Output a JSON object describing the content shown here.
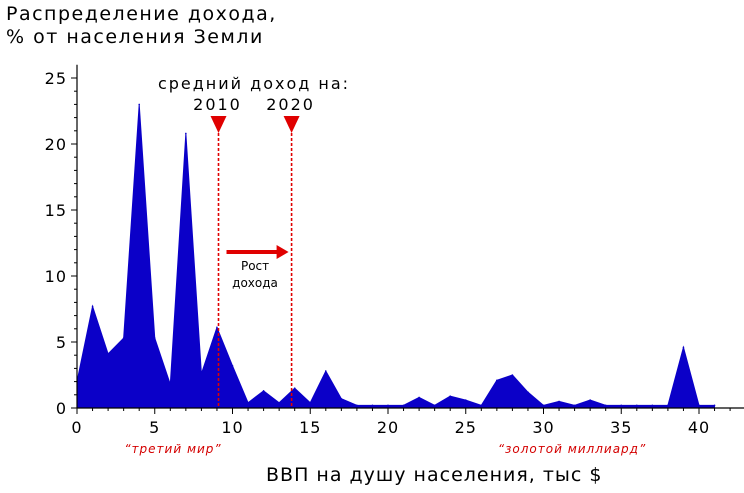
{
  "chart_data": {
    "type": "area",
    "title_lines": [
      "Распределение дохода,",
      "% от населения Земли"
    ],
    "xlabel": "ВВП на душу населения, тыс $",
    "xlim": [
      0,
      43
    ],
    "ylim": [
      0,
      26
    ],
    "xticks": [
      0,
      5,
      10,
      15,
      20,
      25,
      30,
      35,
      40
    ],
    "yticks": [
      0,
      5,
      10,
      15,
      20,
      25
    ],
    "x": [
      0,
      1,
      2,
      3,
      4,
      5,
      6,
      7,
      8,
      9,
      10,
      11,
      12,
      13,
      14,
      15,
      16,
      17,
      18,
      19,
      20,
      21,
      22,
      23,
      24,
      25,
      26,
      27,
      28,
      29,
      30,
      31,
      32,
      33,
      34,
      35,
      36,
      37,
      38,
      39,
      40,
      41
    ],
    "values": [
      2,
      7.7,
      4.1,
      5.3,
      23,
      5.3,
      1.8,
      20.8,
      2.6,
      6.1,
      3.2,
      0.4,
      1.3,
      0.4,
      1.5,
      0.4,
      2.8,
      0.7,
      0.2,
      0.2,
      0.2,
      0.2,
      0.8,
      0.2,
      0.9,
      0.6,
      0.2,
      2.1,
      2.5,
      1.2,
      0.2,
      0.5,
      0.2,
      0.6,
      0.2,
      0.2,
      0.2,
      0.2,
      0.2,
      4.6,
      0.2,
      0.2
    ],
    "annotations": {
      "header": "средний доход на:",
      "markers": [
        {
          "label": "2010",
          "x": 9.1
        },
        {
          "label": "2020",
          "x": 13.8
        }
      ],
      "arrow_label": [
        "Рост",
        "дохода"
      ],
      "region_left": "“третий мир”",
      "region_right": "“золотой миллиард”"
    },
    "colors": {
      "fill": "#0b00c8",
      "marker": "#e00000",
      "note": "#d40000"
    }
  }
}
